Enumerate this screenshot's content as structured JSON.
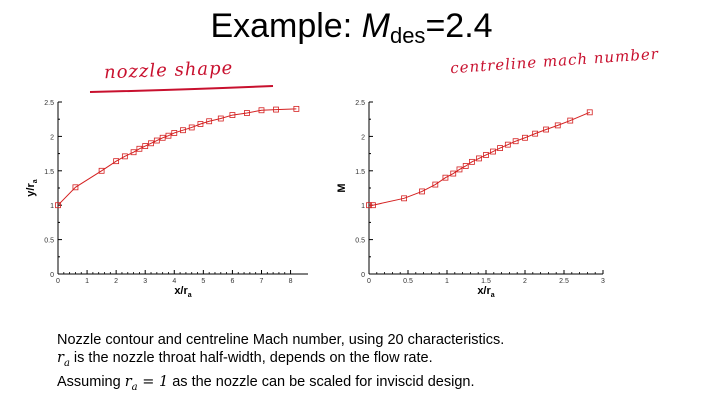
{
  "title": {
    "prefix": "Example: ",
    "var": "M",
    "sub": "des",
    "suffix": "=2.4"
  },
  "annotations": {
    "left": "nozzle shape",
    "right": "centreline mach number"
  },
  "caption": {
    "line1": "Nozzle contour and centreline Mach number, using 20 characteristics.",
    "line2_var": "r",
    "line2_sub": "a",
    "line2_text": " is the nozzle throat half-width, depends on the flow rate.",
    "line3_prefix": "Assuming  ",
    "line3_var": "r",
    "line3_sub": "a",
    "line3_eq": " = 1",
    "line3_text": " as the nozzle can be scaled for inviscid design."
  },
  "colors": {
    "series": "#d42020"
  },
  "chart_data": [
    {
      "type": "line",
      "xlabel": "x/r",
      "xlabel_sub": "a",
      "ylabel": "y/r",
      "ylabel_sub": "a",
      "xlim": [
        0,
        8.6
      ],
      "ylim": [
        0,
        2.5
      ],
      "xticks": [
        0,
        1,
        2,
        3,
        4,
        5,
        6,
        7,
        8
      ],
      "yticks": [
        0,
        0.5,
        1,
        1.5,
        2,
        2.5
      ],
      "ytick_labels": [
        "0",
        "0.5",
        "1",
        "1.5",
        "2",
        "2.5"
      ],
      "grid": false,
      "series": [
        {
          "x": [
            0,
            0.6,
            1.5,
            2.0,
            2.3,
            2.6,
            2.8,
            3.0,
            3.2,
            3.4,
            3.6,
            3.8,
            4.0,
            4.3,
            4.6,
            4.9,
            5.2,
            5.6,
            6.0,
            6.5,
            7.0,
            7.5,
            8.2
          ],
          "y": [
            1.0,
            1.26,
            1.5,
            1.64,
            1.71,
            1.77,
            1.82,
            1.86,
            1.9,
            1.94,
            1.98,
            2.01,
            2.05,
            2.09,
            2.13,
            2.18,
            2.22,
            2.26,
            2.31,
            2.34,
            2.38,
            2.39,
            2.4
          ]
        }
      ]
    },
    {
      "type": "line",
      "xlabel": "x/r",
      "xlabel_sub": "a",
      "ylabel": "M",
      "xlim": [
        0,
        3
      ],
      "ylim": [
        0,
        2.5
      ],
      "xticks": [
        0,
        0.5,
        1,
        1.5,
        2,
        2.5,
        3
      ],
      "xtick_labels": [
        "0",
        "0.5",
        "1",
        "1.5",
        "2",
        "2.5",
        "3"
      ],
      "yticks": [
        0,
        0.5,
        1,
        1.5,
        2,
        2.5
      ],
      "ytick_labels": [
        "0",
        "0.5",
        "1",
        "1.5",
        "2",
        "2.5"
      ],
      "grid": false,
      "series": [
        {
          "x": [
            0,
            0.05,
            0.45,
            0.68,
            0.85,
            0.98,
            1.08,
            1.16,
            1.24,
            1.32,
            1.41,
            1.5,
            1.59,
            1.68,
            1.78,
            1.88,
            2.0,
            2.13,
            2.27,
            2.42,
            2.58,
            2.83
          ],
          "y": [
            1.0,
            1.0,
            1.1,
            1.2,
            1.3,
            1.4,
            1.46,
            1.52,
            1.57,
            1.63,
            1.68,
            1.73,
            1.78,
            1.83,
            1.88,
            1.93,
            1.98,
            2.04,
            2.1,
            2.16,
            2.23,
            2.35
          ]
        }
      ]
    }
  ]
}
